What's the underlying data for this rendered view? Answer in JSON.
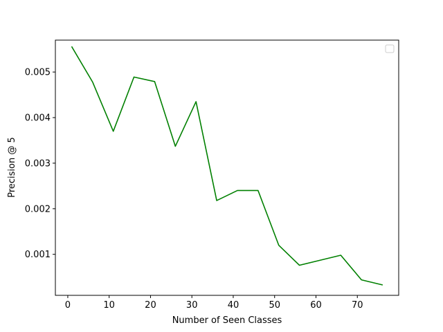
{
  "chart_data": {
    "type": "line",
    "title": "",
    "xlabel": "Number of Seen Classes",
    "ylabel": "Precision @ 5",
    "xlim": [
      -3,
      80
    ],
    "ylim": [
      0.0001,
      0.0057
    ],
    "x_ticks": [
      0,
      10,
      20,
      30,
      40,
      50,
      60,
      70
    ],
    "y_ticks": [
      0.001,
      0.002,
      0.003,
      0.004,
      0.005
    ],
    "x_tick_labels": [
      "0",
      "10",
      "20",
      "30",
      "40",
      "50",
      "60",
      "70"
    ],
    "y_tick_labels": [
      "0.001",
      "0.002",
      "0.003",
      "0.004",
      "0.005"
    ],
    "grid": false,
    "legend": {
      "placement": "top-right",
      "entries": []
    },
    "series": [
      {
        "color": "#008000",
        "x": [
          1,
          6,
          11,
          16,
          21,
          26,
          31,
          36,
          41,
          46,
          51,
          56,
          61,
          66,
          71,
          76
        ],
        "y": [
          0.00555,
          0.00478,
          0.0037,
          0.00489,
          0.00479,
          0.00337,
          0.00435,
          0.00218,
          0.0024,
          0.0024,
          0.0012,
          0.00076,
          0.00087,
          0.00098,
          0.00044,
          0.00033
        ]
      }
    ]
  }
}
